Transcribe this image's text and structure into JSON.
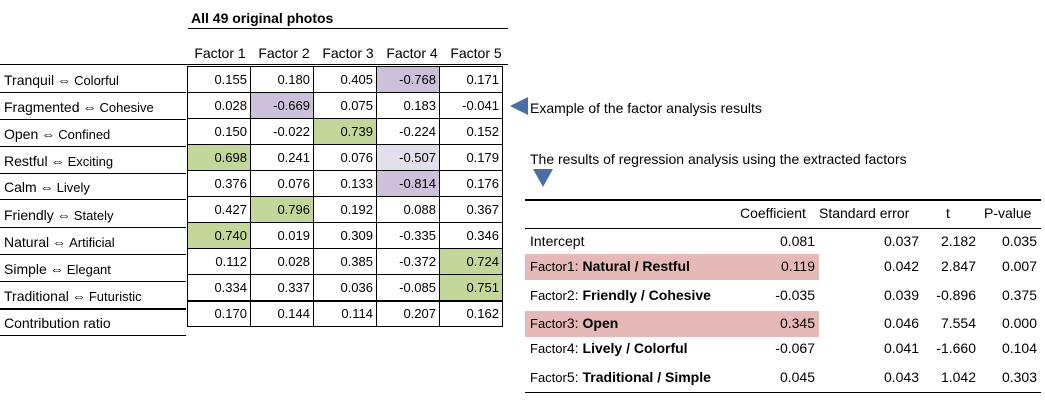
{
  "factor_table": {
    "title": "All 49 original photos",
    "columns": [
      "Factor 1",
      "Factor 2",
      "Factor 3",
      "Factor 4",
      "Factor 5"
    ],
    "rows": [
      {
        "left": "Tranquil",
        "right": "Colorful",
        "values": [
          "0.155",
          "0.180",
          "0.405",
          "-0.768",
          "0.171"
        ],
        "highlight": [
          null,
          null,
          null,
          "purple",
          null
        ]
      },
      {
        "left": "Fragmented",
        "right": "Cohesive",
        "values": [
          "0.028",
          "-0.669",
          "0.075",
          "0.183",
          "-0.041"
        ],
        "highlight": [
          null,
          "purple",
          null,
          null,
          null
        ]
      },
      {
        "left": "Open",
        "right": "Confined",
        "values": [
          "0.150",
          "-0.022",
          "0.739",
          "-0.224",
          "0.152"
        ],
        "highlight": [
          null,
          null,
          "green",
          null,
          null
        ]
      },
      {
        "left": "Restful",
        "right": "Exciting",
        "values": [
          "0.698",
          "0.241",
          "0.076",
          "-0.507",
          "0.179"
        ],
        "highlight": [
          "green",
          null,
          null,
          "lightpurple",
          null
        ]
      },
      {
        "left": "Calm",
        "right": "Lively",
        "values": [
          "0.376",
          "0.076",
          "0.133",
          "-0.814",
          "0.176"
        ],
        "highlight": [
          null,
          null,
          null,
          "purple",
          null
        ]
      },
      {
        "left": "Friendly",
        "right": "Stately",
        "values": [
          "0.427",
          "0.796",
          "0.192",
          "0.088",
          "0.367"
        ],
        "highlight": [
          null,
          "green",
          null,
          null,
          null
        ]
      },
      {
        "left": "Natural",
        "right": "Artificial",
        "values": [
          "0.740",
          "0.019",
          "0.309",
          "-0.335",
          "0.346"
        ],
        "highlight": [
          "green",
          null,
          null,
          null,
          null
        ]
      },
      {
        "left": "Simple",
        "right": "Elegant",
        "values": [
          "0.112",
          "0.028",
          "0.385",
          "-0.372",
          "0.724"
        ],
        "highlight": [
          null,
          null,
          null,
          null,
          "green"
        ]
      },
      {
        "left": "Traditional",
        "right": "Futuristic",
        "values": [
          "0.334",
          "0.337",
          "0.036",
          "-0.085",
          "0.751"
        ],
        "highlight": [
          null,
          null,
          null,
          null,
          "green"
        ]
      }
    ],
    "contribution": {
      "label": "Contribution ratio",
      "values": [
        "0.170",
        "0.144",
        "0.114",
        "0.207",
        "0.162"
      ]
    },
    "arrow_symbol": "⇔"
  },
  "notes": {
    "example": "Example of the factor analysis results",
    "regression": "The results of regression analysis using the extracted factors"
  },
  "regression_table": {
    "headers": [
      "Coefficient",
      "Standard error",
      "t",
      "P-value"
    ],
    "rows": [
      {
        "prefix": "",
        "name": "Intercept",
        "bold": false,
        "highlight": false,
        "coef": "0.081",
        "se": "0.037",
        "t": "2.182",
        "p": "0.035"
      },
      {
        "prefix": "Factor",
        "num": "1:",
        "name": "Natural / Restful",
        "bold": true,
        "highlight": true,
        "coef": "0.119",
        "se": "0.042",
        "t": "2.847",
        "p": "0.007"
      },
      {
        "prefix": "Factor",
        "num": "2:",
        "name": "Friendly / Cohesive",
        "bold": true,
        "highlight": false,
        "coef": "-0.035",
        "se": "0.039",
        "t": "-0.896",
        "p": "0.375"
      },
      {
        "prefix": "Factor",
        "num": "3:",
        "name": "Open",
        "bold": true,
        "highlight": true,
        "coef": "0.345",
        "se": "0.046",
        "t": "7.554",
        "p": "0.000"
      },
      {
        "prefix": "Factor",
        "num": "4:",
        "name": "Lively / Colorful",
        "bold": true,
        "highlight": false,
        "coef": "-0.067",
        "se": "0.041",
        "t": "-1.660",
        "p": "0.104"
      },
      {
        "prefix": "Factor",
        "num": "5:",
        "name": "Traditional / Simple",
        "bold": true,
        "highlight": false,
        "coef": "0.045",
        "se": "0.043",
        "t": "1.042",
        "p": "0.303"
      }
    ]
  },
  "colors": {
    "green": "#c4d79b",
    "purple": "#ccc0da",
    "lightpurple": "#e4dfec",
    "pink": "#e6b8b8",
    "arrow": "#4a6fa5"
  }
}
